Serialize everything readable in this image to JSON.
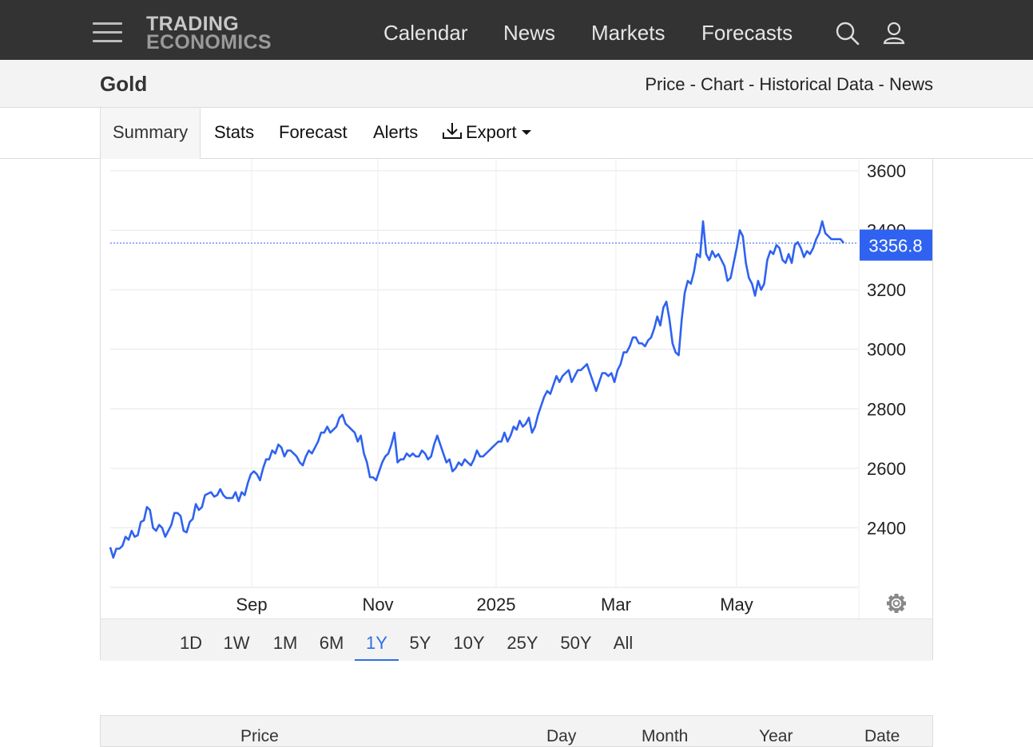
{
  "nav": {
    "logo_line1": "TRADING",
    "logo_line2": "ECONOMICS",
    "links": [
      "Calendar",
      "News",
      "Markets",
      "Forecasts"
    ],
    "icons": [
      "menu-icon",
      "search-icon",
      "user-icon"
    ]
  },
  "header": {
    "title": "Gold",
    "breadcrumb": "Price - Chart - Historical Data - News"
  },
  "tabs": {
    "summary": "Summary",
    "stats": "Stats",
    "forecast": "Forecast",
    "alerts": "Alerts",
    "export": "Export"
  },
  "chart_data": {
    "type": "line",
    "title": "",
    "xlabel": "",
    "ylabel": "",
    "x_ticks": [
      "Sep",
      "Nov",
      "2025",
      "Mar",
      "May"
    ],
    "y_ticks": [
      2400,
      2600,
      2800,
      3000,
      3200,
      3400,
      3600
    ],
    "ylim": [
      2200,
      3640
    ],
    "grid": true,
    "last_value": "3356.8",
    "line_color": "#2f62f0",
    "series": [
      {
        "values": [
          2335,
          2300,
          2330,
          2330,
          2340,
          2370,
          2360,
          2390,
          2370,
          2375,
          2420,
          2425,
          2470,
          2460,
          2400,
          2390,
          2410,
          2400,
          2370,
          2390,
          2410,
          2450,
          2450,
          2440,
          2390,
          2385,
          2420,
          2430,
          2480,
          2460,
          2470,
          2510,
          2515,
          2520,
          2505,
          2510,
          2530,
          2510,
          2500,
          2500,
          2500,
          2520,
          2490,
          2520,
          2510,
          2550,
          2580,
          2590,
          2580,
          2560,
          2600,
          2630,
          2630,
          2660,
          2650,
          2680,
          2670,
          2640,
          2660,
          2660,
          2650,
          2640,
          2620,
          2610,
          2640,
          2660,
          2650,
          2670,
          2690,
          2720,
          2720,
          2740,
          2720,
          2730,
          2740,
          2770,
          2780,
          2750,
          2740,
          2730,
          2720,
          2690,
          2710,
          2650,
          2620,
          2570,
          2570,
          2560,
          2590,
          2620,
          2640,
          2650,
          2680,
          2720,
          2620,
          2630,
          2630,
          2650,
          2640,
          2650,
          2640,
          2640,
          2660,
          2650,
          2630,
          2640,
          2680,
          2710,
          2680,
          2650,
          2620,
          2630,
          2590,
          2600,
          2620,
          2610,
          2630,
          2620,
          2610,
          2630,
          2660,
          2640,
          2640,
          2650,
          2660,
          2670,
          2680,
          2690,
          2690,
          2720,
          2690,
          2710,
          2740,
          2730,
          2760,
          2740,
          2750,
          2770,
          2720,
          2740,
          2780,
          2810,
          2840,
          2860,
          2850,
          2880,
          2910,
          2890,
          2910,
          2920,
          2930,
          2890,
          2910,
          2930,
          2930,
          2940,
          2950,
          2920,
          2890,
          2860,
          2890,
          2920,
          2920,
          2910,
          2920,
          2890,
          2930,
          2950,
          2990,
          2990,
          3010,
          3040,
          3040,
          3020,
          3020,
          3010,
          3030,
          3040,
          3070,
          3110,
          3080,
          3140,
          3160,
          3100,
          3020,
          2990,
          2980,
          3100,
          3190,
          3230,
          3220,
          3260,
          3320,
          3310,
          3430,
          3320,
          3300,
          3330,
          3310,
          3320,
          3300,
          3280,
          3230,
          3240,
          3290,
          3340,
          3400,
          3380,
          3290,
          3240,
          3220,
          3180,
          3230,
          3200,
          3220,
          3300,
          3330,
          3320,
          3350,
          3340,
          3300,
          3290,
          3320,
          3290,
          3350,
          3360,
          3340,
          3310,
          3330,
          3320,
          3340,
          3370,
          3390,
          3430,
          3390,
          3380,
          3370,
          3370,
          3370,
          3370,
          3356.8
        ]
      }
    ]
  },
  "ranges": [
    "1D",
    "1W",
    "1M",
    "6M",
    "1Y",
    "5Y",
    "10Y",
    "25Y",
    "50Y",
    "All"
  ],
  "active_range": "1Y",
  "table": {
    "headers": [
      "Price",
      "Day",
      "Month",
      "Year",
      "Date"
    ]
  }
}
